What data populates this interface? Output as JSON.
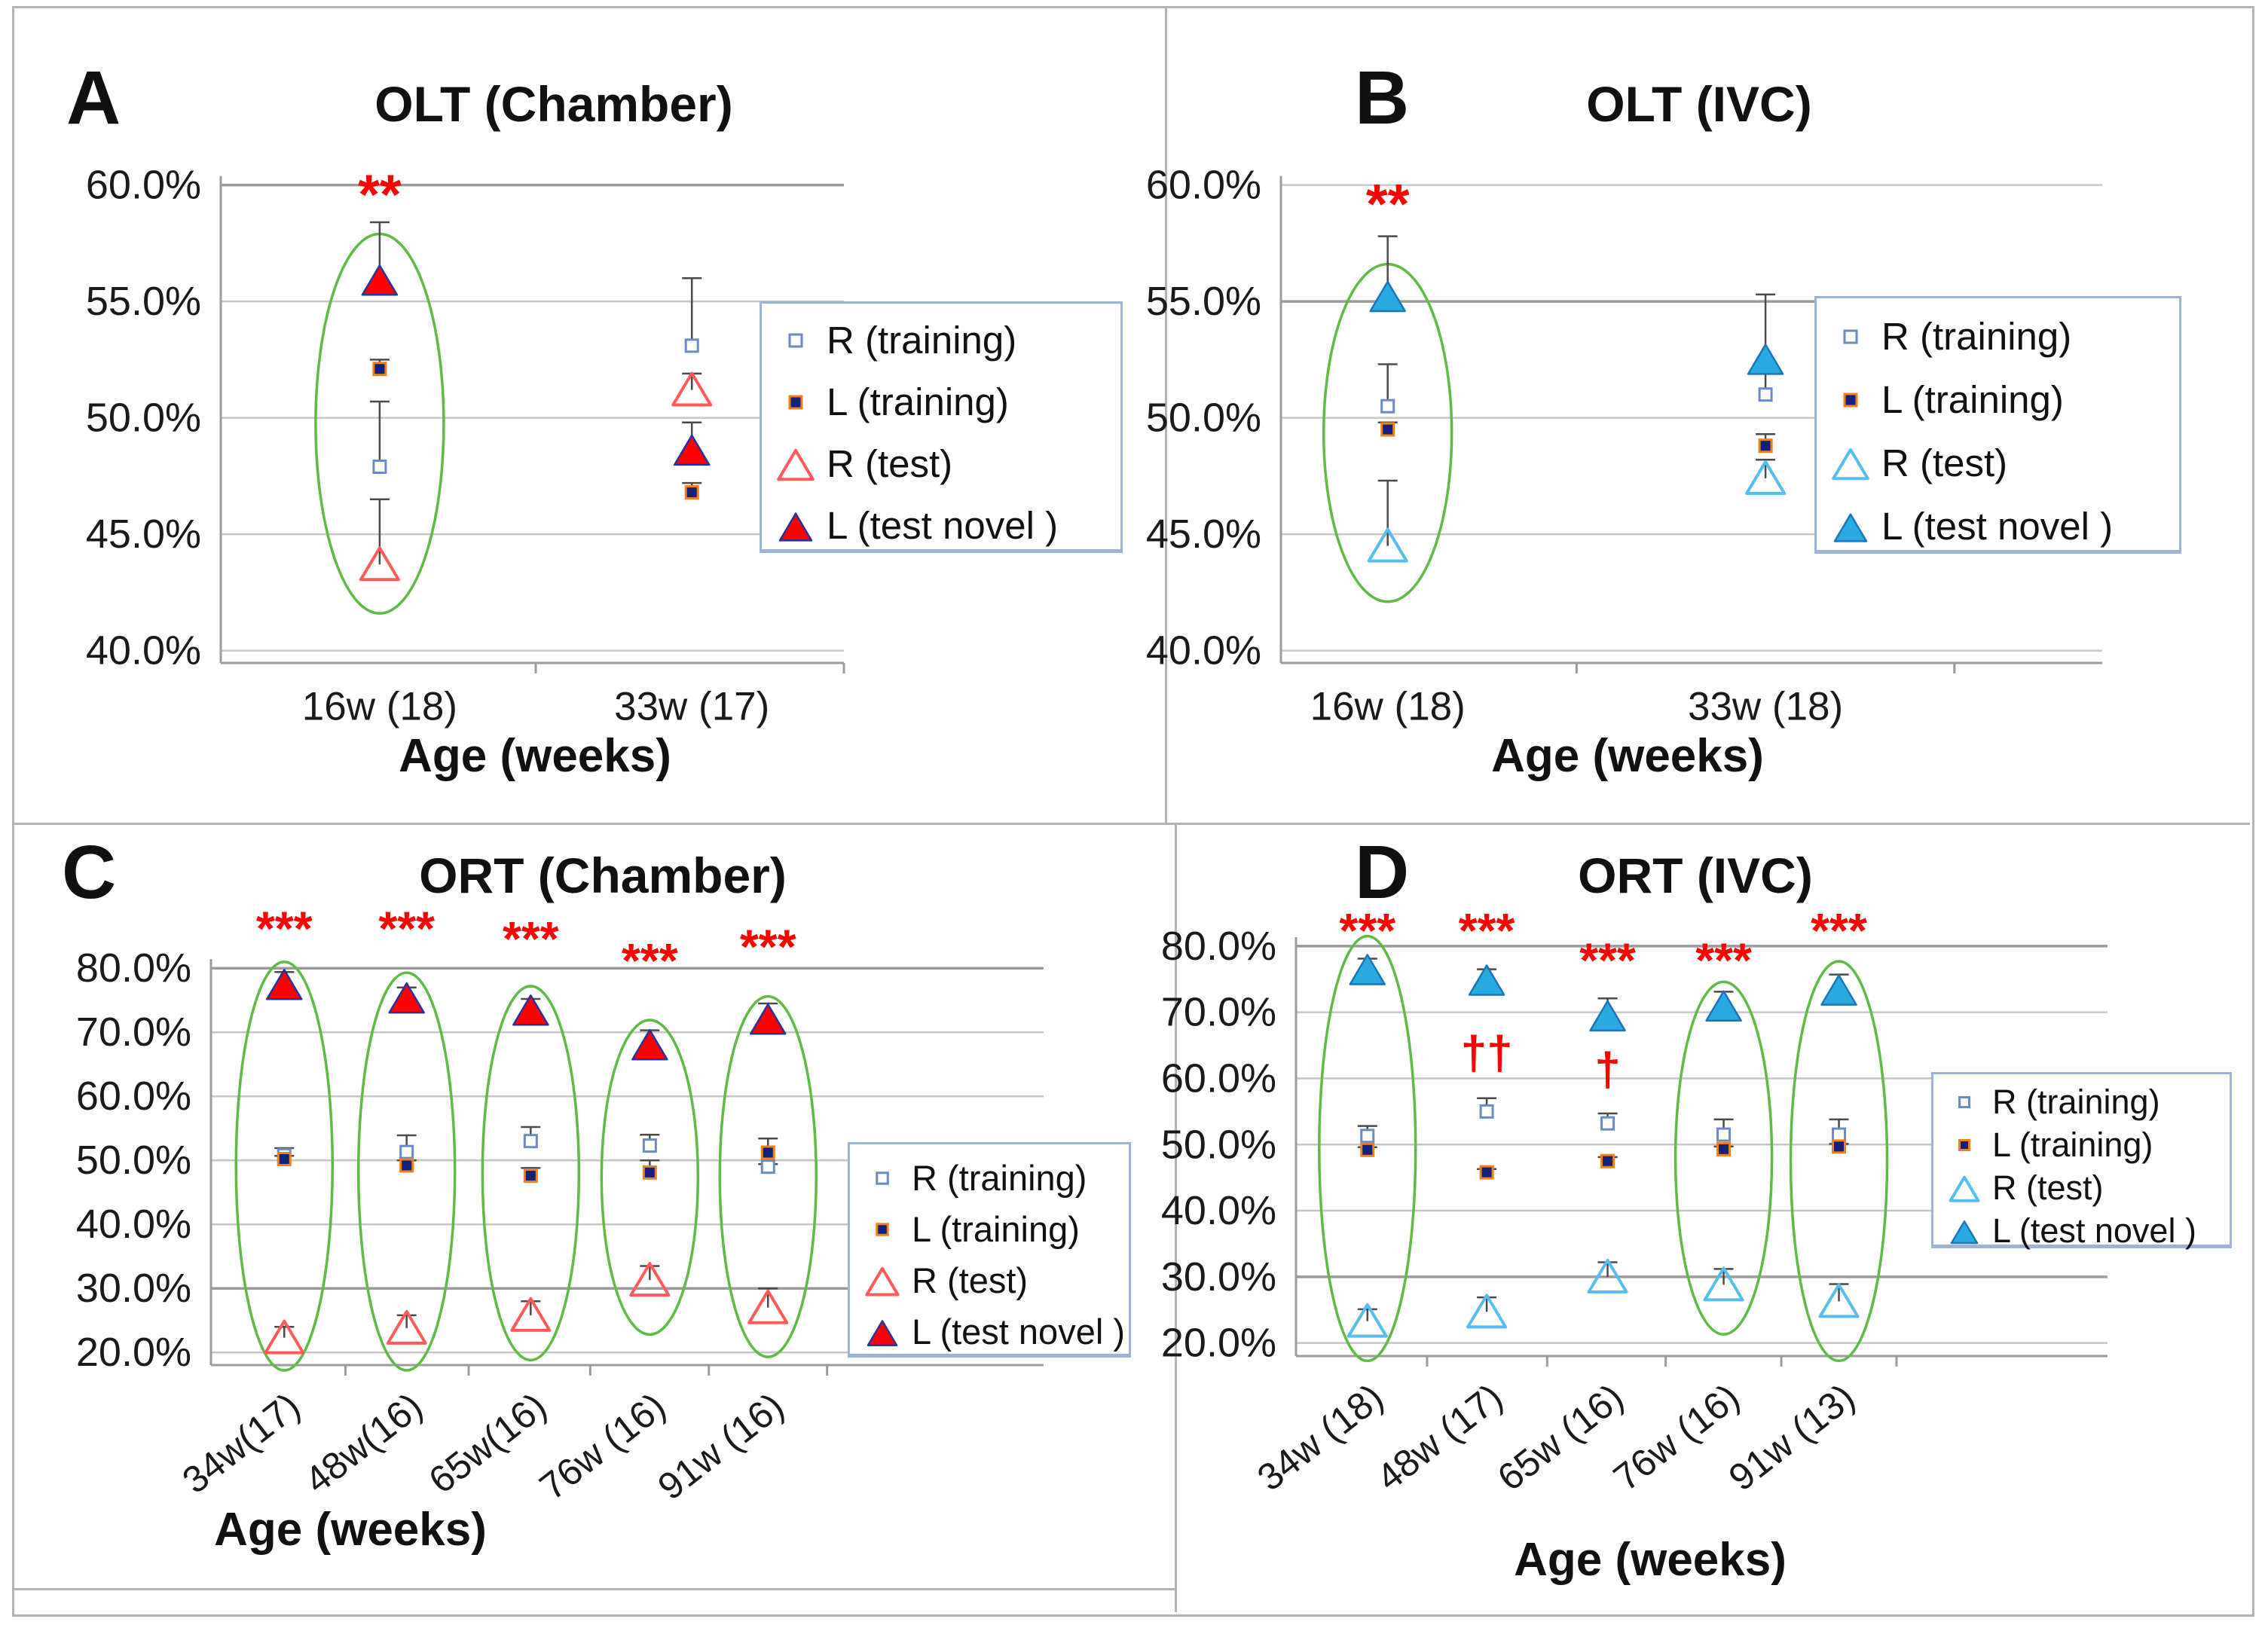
{
  "figure": {
    "background": "#ffffff",
    "border_color": "#b3b3b3"
  },
  "colors": {
    "grid": "#c6c6c6",
    "grid_strong": "#9b9b9b",
    "axis": "#9b9b9b",
    "error_bar": "#4a4a4a",
    "ellipse": "#5fbb46",
    "significance": "#ff0000",
    "text": "#1a1a1a",
    "legend_border": "#9db4d6",
    "r_training_stroke": "#6b8ac9",
    "l_training_fill": "#13217a",
    "l_training_stroke": "#f08019",
    "chamber": {
      "open": "#ff5b5b",
      "fill": "#ff0000",
      "fill_stroke": "#26339b"
    },
    "ivc": {
      "open": "#56beec",
      "fill": "#29abe2",
      "fill_stroke": "#1b75bb"
    }
  },
  "legend_labels": [
    "R (training)",
    "L (training)",
    "R (test)",
    "L (test novel )"
  ],
  "chart_data": {
    "type": "scatter",
    "panels": [
      {
        "panel_label": "A",
        "title": "OLT (Chamber)",
        "xlabel": "Age (weeks)",
        "variant": "chamber",
        "ylim": [
          40,
          60
        ],
        "y_ticks": [
          "60.0%",
          "55.0%",
          "50.0%",
          "45.0%",
          "40.0%"
        ],
        "y_tick_values": [
          60,
          55,
          50,
          45,
          40
        ],
        "categories": [
          "16w (18)",
          "33w (17)"
        ],
        "series": [
          {
            "name": "R (training)",
            "marker": "open_square",
            "points": [
              {
                "v": 47.9,
                "e": 2.8
              },
              {
                "v": 53.1,
                "e": 2.9
              }
            ]
          },
          {
            "name": "L (training)",
            "marker": "filled_square",
            "points": [
              {
                "v": 52.1,
                "e": 0.4
              },
              {
                "v": 46.8,
                "e": 0.4
              }
            ]
          },
          {
            "name": "R (test)",
            "marker": "open_triangle",
            "points": [
              {
                "v": 43.7,
                "e": 2.8
              },
              {
                "v": 51.2,
                "e": 0.7
              }
            ]
          },
          {
            "name": "L (test novel )",
            "marker": "filled_triangle",
            "points": [
              {
                "v": 55.9,
                "e": 2.5
              },
              {
                "v": 48.6,
                "e": 1.2
              }
            ]
          }
        ],
        "significance": [
          {
            "cat": 0,
            "text": "**",
            "v": 59.6
          }
        ],
        "ellipses": [
          {
            "cat": 0,
            "v_top": 57.9,
            "v_bottom": 41.6,
            "rx": 85
          }
        ]
      },
      {
        "panel_label": "B",
        "title": "OLT (IVC)",
        "xlabel": "Age (weeks)",
        "variant": "ivc",
        "ylim": [
          40,
          60
        ],
        "y_ticks": [
          "60.0%",
          "55.0%",
          "50.0%",
          "45.0%",
          "40.0%"
        ],
        "y_tick_values": [
          60,
          55,
          50,
          45,
          40
        ],
        "categories": [
          "16w (18)",
          "33w (18)"
        ],
        "series": [
          {
            "name": "R (training)",
            "marker": "open_square",
            "points": [
              {
                "v": 50.5,
                "e": 1.8
              },
              {
                "v": 51.0,
                "e": 0.9
              }
            ]
          },
          {
            "name": "L (training)",
            "marker": "filled_square",
            "points": [
              {
                "v": 49.5,
                "e": 0.3
              },
              {
                "v": 48.8,
                "e": 0.5
              }
            ]
          },
          {
            "name": "R (test)",
            "marker": "open_triangle",
            "points": [
              {
                "v": 44.5,
                "e": 2.8
              },
              {
                "v": 47.4,
                "e": 0.8
              }
            ]
          },
          {
            "name": "L (test novel )",
            "marker": "filled_triangle",
            "points": [
              {
                "v": 55.2,
                "e": 2.6
              },
              {
                "v": 52.5,
                "e": 2.8
              }
            ]
          }
        ],
        "significance": [
          {
            "cat": 0,
            "text": "**",
            "v": 59.2
          }
        ],
        "ellipses": [
          {
            "cat": 0,
            "v_top": 56.6,
            "v_bottom": 42.1,
            "rx": 85
          }
        ]
      },
      {
        "panel_label": "C",
        "title": "ORT (Chamber)",
        "xlabel": "Age (weeks)",
        "variant": "chamber",
        "ylim": [
          20,
          80
        ],
        "y_ticks": [
          "80.0%",
          "70.0%",
          "60.0%",
          "50.0%",
          "40.0%",
          "30.0%",
          "20.0%"
        ],
        "y_tick_values": [
          80,
          70,
          60,
          50,
          40,
          30,
          20
        ],
        "categories": [
          "34w(17)",
          "48w(16)",
          "65w(16)",
          "76w (16)",
          "91w (16)"
        ],
        "series": [
          {
            "name": "R (training)",
            "marker": "open_square",
            "points": [
              {
                "v": 50.8,
                "e": 1.1
              },
              {
                "v": 51.3,
                "e": 2.6
              },
              {
                "v": 53.0,
                "e": 2.2
              },
              {
                "v": 52.3,
                "e": 1.7
              },
              {
                "v": 49.0,
                "e": 0.4
              }
            ]
          },
          {
            "name": "L (training)",
            "marker": "filled_square",
            "points": [
              {
                "v": 50.2,
                "e": 0.5
              },
              {
                "v": 49.2,
                "e": 0.8
              },
              {
                "v": 47.6,
                "e": 1.2
              },
              {
                "v": 48.1,
                "e": 1.9
              },
              {
                "v": 51.2,
                "e": 2.2
              }
            ]
          },
          {
            "name": "R (test)",
            "marker": "open_triangle",
            "points": [
              {
                "v": 22.3,
                "e": 1.7
              },
              {
                "v": 23.8,
                "e": 2.0
              },
              {
                "v": 25.8,
                "e": 2.2
              },
              {
                "v": 31.3,
                "e": 2.2
              },
              {
                "v": 27.0,
                "e": 3.0
              }
            ]
          },
          {
            "name": "L (test novel )",
            "marker": "filled_triangle",
            "points": [
              {
                "v": 77.4,
                "e": 2.0
              },
              {
                "v": 75.3,
                "e": 1.7
              },
              {
                "v": 73.4,
                "e": 1.8
              },
              {
                "v": 68.0,
                "e": 2.3
              },
              {
                "v": 72.0,
                "e": 2.5
              }
            ]
          }
        ],
        "significance": [
          {
            "cat": 0,
            "text": "***",
            "v": 86.2
          },
          {
            "cat": 1,
            "text": "***",
            "v": 86.2
          },
          {
            "cat": 2,
            "text": "***",
            "v": 84.6
          },
          {
            "cat": 3,
            "text": "***",
            "v": 81.2
          },
          {
            "cat": 4,
            "text": "***",
            "v": 83.4
          }
        ],
        "ellipses": [
          {
            "cat": 0,
            "v_top": 81.0,
            "v_bottom": 17.2,
            "rx": 64
          },
          {
            "cat": 1,
            "v_top": 79.3,
            "v_bottom": 17.2,
            "rx": 64
          },
          {
            "cat": 2,
            "v_top": 77.2,
            "v_bottom": 18.8,
            "rx": 64
          },
          {
            "cat": 3,
            "v_top": 71.9,
            "v_bottom": 22.8,
            "rx": 64
          },
          {
            "cat": 4,
            "v_top": 75.6,
            "v_bottom": 19.3,
            "rx": 64
          }
        ]
      },
      {
        "panel_label": "D",
        "title": "ORT (IVC)",
        "xlabel": "Age (weeks)",
        "variant": "ivc",
        "ylim": [
          20,
          80
        ],
        "y_ticks": [
          "80.0%",
          "70.0%",
          "60.0%",
          "50.0%",
          "40.0%",
          "30.0%",
          "20.0%"
        ],
        "y_tick_values": [
          80,
          70,
          60,
          50,
          40,
          30,
          20
        ],
        "categories": [
          "34w (18)",
          "48w (17)",
          "65w (16)",
          "76w (16)",
          "91w (13)"
        ],
        "series": [
          {
            "name": "R (training)",
            "marker": "open_square",
            "points": [
              {
                "v": 51.3,
                "e": 1.5
              },
              {
                "v": 55.0,
                "e": 2.0
              },
              {
                "v": 53.2,
                "e": 1.5
              },
              {
                "v": 51.5,
                "e": 2.3
              },
              {
                "v": 51.5,
                "e": 2.3
              }
            ]
          },
          {
            "name": "L (training)",
            "marker": "filled_square",
            "points": [
              {
                "v": 49.2,
                "e": 0.4
              },
              {
                "v": 45.8,
                "e": 0.5
              },
              {
                "v": 47.5,
                "e": 0.6
              },
              {
                "v": 49.3,
                "e": 0.4
              },
              {
                "v": 49.7,
                "e": 0.4
              }
            ]
          },
          {
            "name": "R (test)",
            "marker": "open_triangle",
            "points": [
              {
                "v": 23.3,
                "e": 1.8
              },
              {
                "v": 24.7,
                "e": 2.2
              },
              {
                "v": 30.0,
                "e": 2.2
              },
              {
                "v": 28.8,
                "e": 2.4
              },
              {
                "v": 26.3,
                "e": 2.6
              }
            ]
          },
          {
            "name": "L (test novel )",
            "marker": "filled_triangle",
            "points": [
              {
                "v": 76.4,
                "e": 1.7
              },
              {
                "v": 74.8,
                "e": 1.7
              },
              {
                "v": 69.4,
                "e": 2.7
              },
              {
                "v": 70.9,
                "e": 2.2
              },
              {
                "v": 73.3,
                "e": 2.4
              }
            ]
          }
        ],
        "significance": [
          {
            "cat": 0,
            "text": "***",
            "v": 82.4
          },
          {
            "cat": 1,
            "text": "***",
            "v": 82.4
          },
          {
            "cat": 2,
            "text": "***",
            "v": 77.9
          },
          {
            "cat": 3,
            "text": "***",
            "v": 77.9
          },
          {
            "cat": 4,
            "text": "***",
            "v": 82.4
          },
          {
            "cat": 1,
            "text": "††",
            "v": 63.8
          },
          {
            "cat": 2,
            "text": "†",
            "v": 61.3
          }
        ],
        "ellipses": [
          {
            "cat": 0,
            "v_top": 81.5,
            "v_bottom": 17.3,
            "rx": 64
          },
          {
            "cat": 3,
            "v_top": 74.6,
            "v_bottom": 21.3,
            "rx": 64
          },
          {
            "cat": 4,
            "v_top": 77.7,
            "v_bottom": 17.3,
            "rx": 64
          }
        ]
      }
    ]
  }
}
